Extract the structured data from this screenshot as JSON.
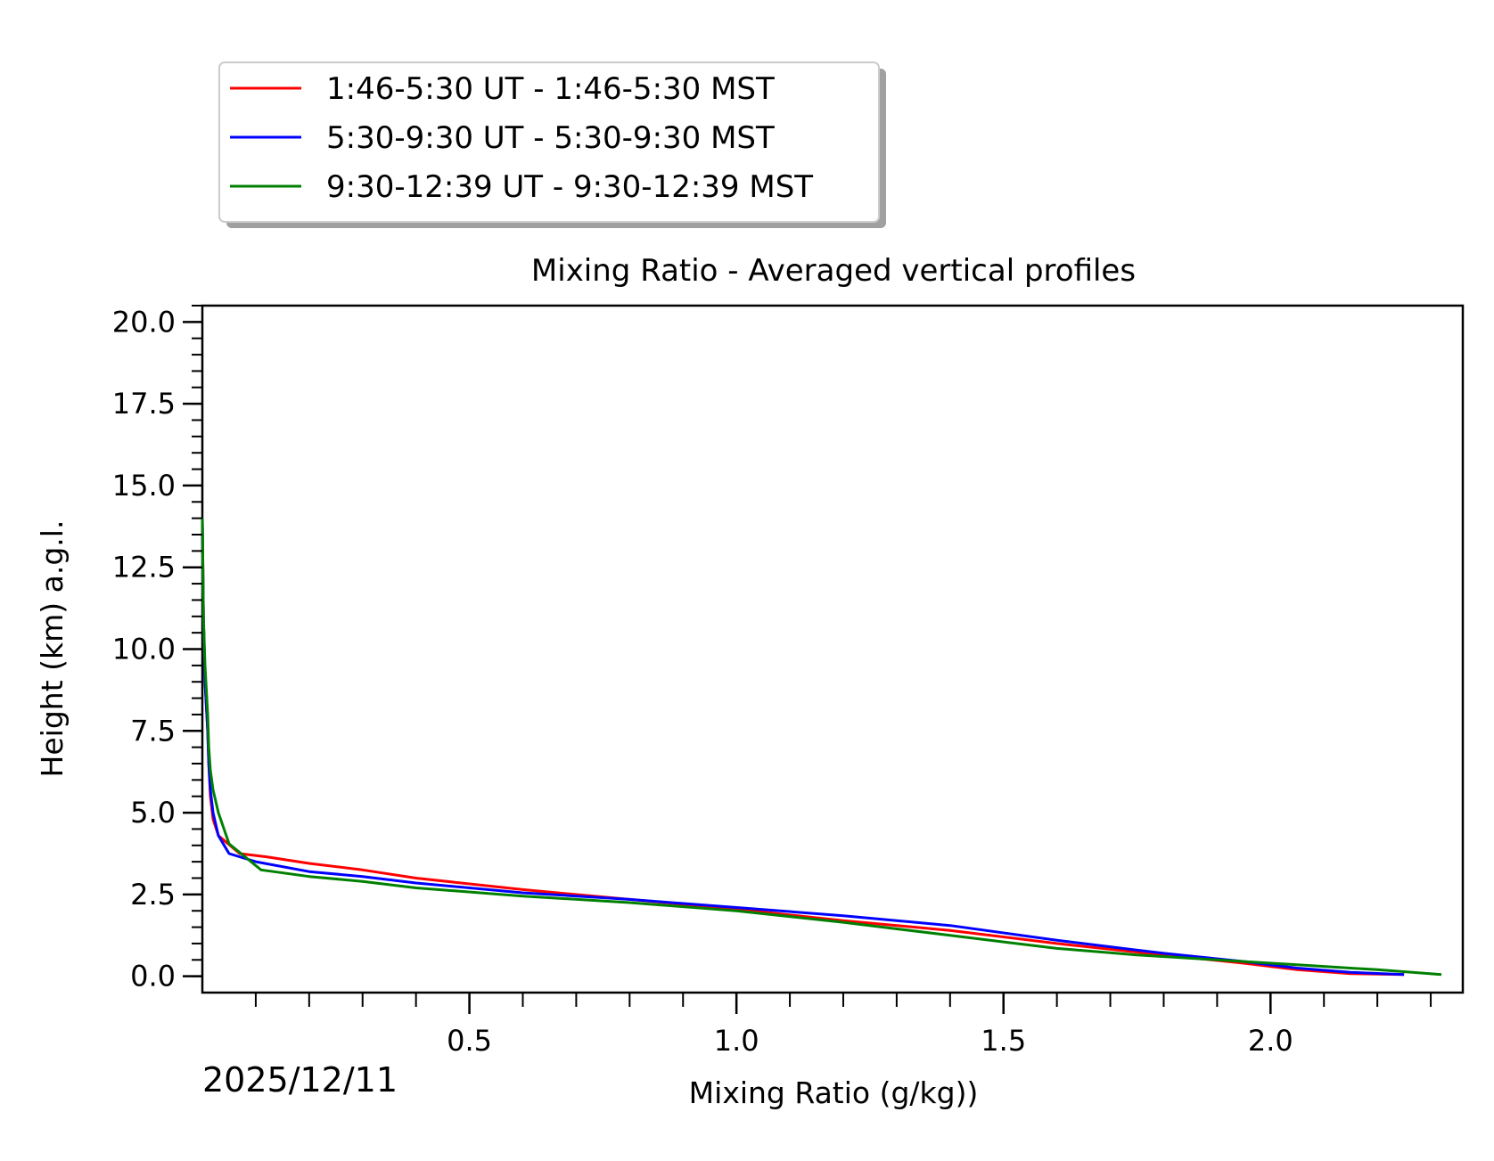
{
  "chart_data": {
    "type": "line",
    "title": "Mixing Ratio - Averaged vertical profiles",
    "xlabel": "Mixing Ratio (g/kg))",
    "ylabel": "Height (km) a.g.l.",
    "date_label": "2025/12/11",
    "xlim": [
      0.0,
      2.36
    ],
    "ylim": [
      -0.5,
      20.5
    ],
    "x_ticks": [
      "0.5",
      "1.0",
      "1.5",
      "2.0"
    ],
    "x_tick_values": [
      0.5,
      1.0,
      1.5,
      2.0
    ],
    "x_minor_step": 0.1,
    "y_ticks": [
      "0.0",
      "2.5",
      "5.0",
      "7.5",
      "10.0",
      "12.5",
      "15.0",
      "17.5",
      "20.0"
    ],
    "y_tick_values": [
      0.0,
      2.5,
      5.0,
      7.5,
      10.0,
      12.5,
      15.0,
      17.5,
      20.0
    ],
    "y_minor_step": 0.5,
    "legend_position": "top-left, above plot",
    "series": [
      {
        "name": "1:46-5:30 UT - 1:46-5:30 MST",
        "color": "#ff0000",
        "x": [
          2.25,
          2.15,
          2.05,
          1.95,
          1.8,
          1.6,
          1.4,
          1.2,
          1.0,
          0.8,
          0.6,
          0.4,
          0.3,
          0.2,
          0.12,
          0.07,
          0.03,
          0.02,
          0.015,
          0.012,
          0.01,
          0.005,
          0.002,
          0.0
        ],
        "y": [
          0.05,
          0.08,
          0.2,
          0.4,
          0.65,
          1.0,
          1.4,
          1.7,
          2.05,
          2.35,
          2.65,
          3.0,
          3.25,
          3.45,
          3.65,
          3.75,
          4.3,
          4.8,
          5.5,
          6.5,
          7.5,
          9.0,
          11.0,
          14.0
        ]
      },
      {
        "name": "5:30-9:30 UT - 5:30-9:30 MST",
        "color": "#0000ff",
        "x": [
          2.25,
          2.15,
          2.05,
          1.95,
          1.8,
          1.6,
          1.4,
          1.2,
          1.0,
          0.8,
          0.6,
          0.4,
          0.3,
          0.2,
          0.1,
          0.05,
          0.03,
          0.02,
          0.015,
          0.012,
          0.01,
          0.005,
          0.002,
          0.0
        ],
        "y": [
          0.05,
          0.12,
          0.25,
          0.45,
          0.7,
          1.1,
          1.55,
          1.85,
          2.1,
          2.35,
          2.55,
          2.85,
          3.05,
          3.2,
          3.5,
          3.75,
          4.3,
          5.0,
          5.7,
          6.5,
          7.5,
          9.0,
          11.0,
          14.0
        ]
      },
      {
        "name": "9:30-12:39 UT - 9:30-12:39 MST",
        "color": "#008000",
        "x": [
          2.32,
          2.2,
          2.05,
          1.9,
          1.75,
          1.6,
          1.4,
          1.2,
          1.0,
          0.8,
          0.6,
          0.4,
          0.3,
          0.2,
          0.11,
          0.05,
          0.03,
          0.02,
          0.015,
          0.012,
          0.01,
          0.005,
          0.002,
          0.0
        ],
        "y": [
          0.05,
          0.2,
          0.35,
          0.5,
          0.65,
          0.85,
          1.25,
          1.65,
          2.0,
          2.25,
          2.45,
          2.7,
          2.9,
          3.05,
          3.25,
          4.05,
          5.0,
          5.7,
          6.3,
          7.0,
          8.0,
          9.5,
          11.0,
          14.0
        ]
      }
    ]
  }
}
